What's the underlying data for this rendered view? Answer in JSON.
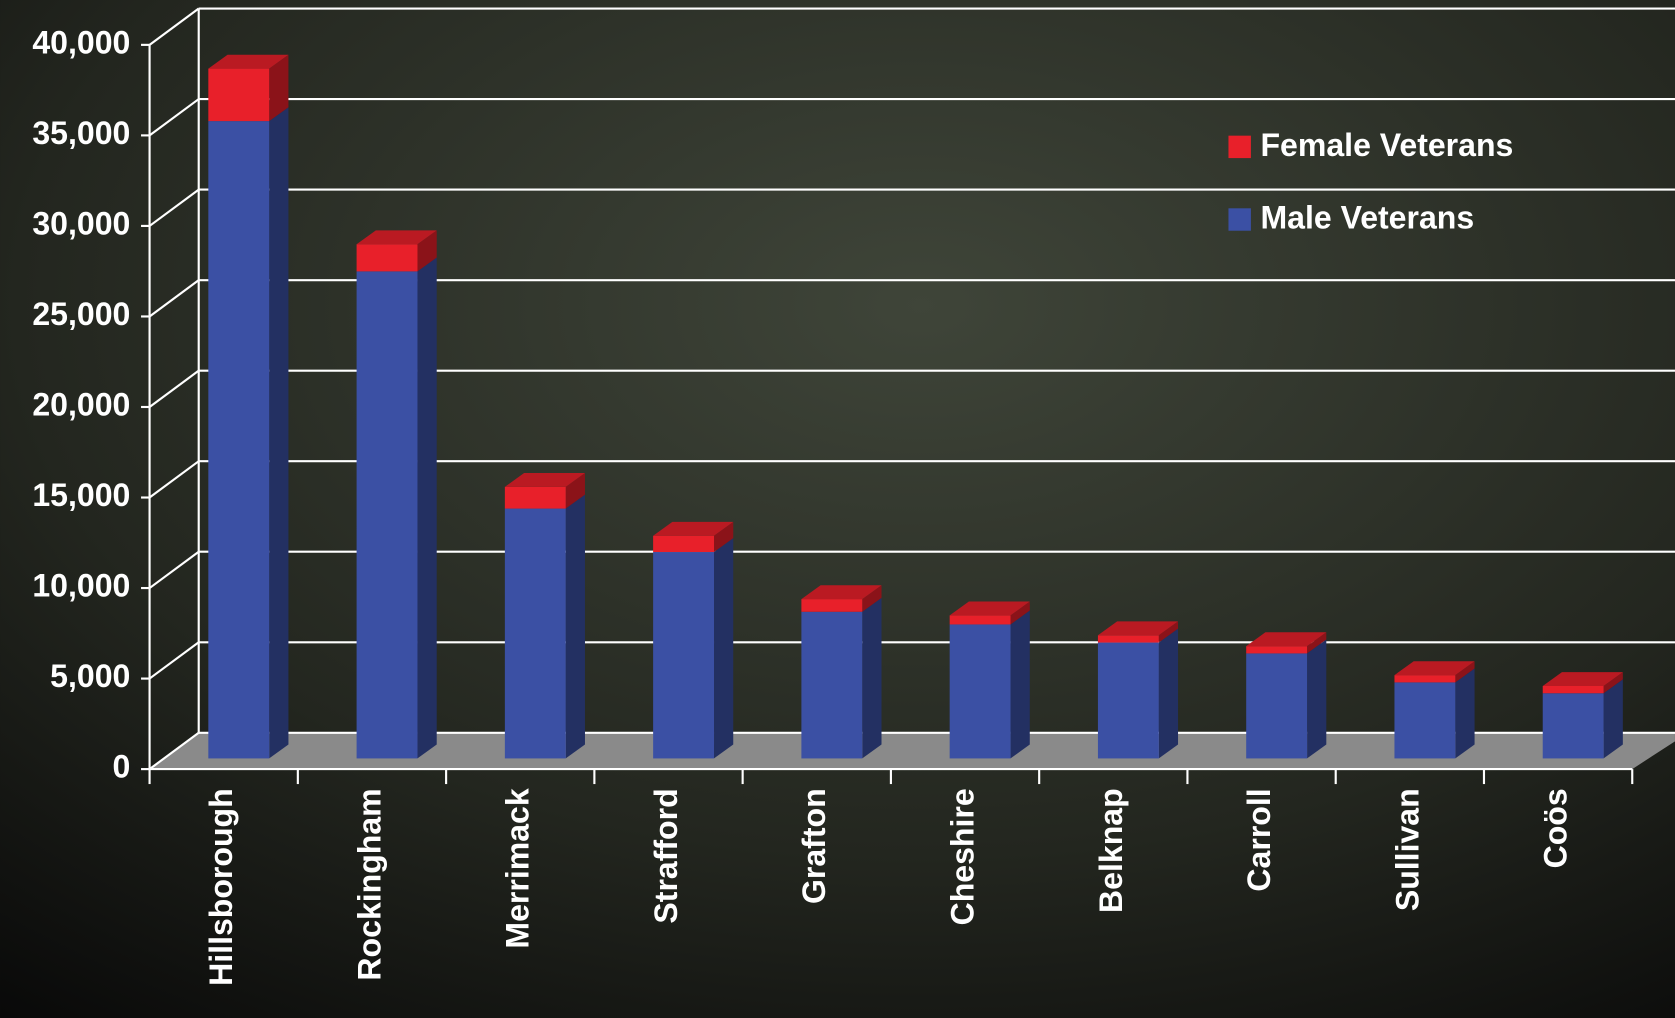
{
  "chart_data": {
    "type": "bar3d_stacked",
    "categories": [
      "Hillsborough",
      "Rockingham",
      "Merrimack",
      "Strafford",
      "Grafton",
      "Cheshire",
      "Belknap",
      "Carroll",
      "Sullivan",
      "Coös"
    ],
    "series": [
      {
        "name": "Male Veterans",
        "color": "#3b50a4",
        "values": [
          35200,
          26900,
          13800,
          11400,
          8100,
          7400,
          6400,
          5800,
          4200,
          3600
        ]
      },
      {
        "name": "Female Veterans",
        "color": "#e8202a",
        "values": [
          2900,
          1500,
          1200,
          900,
          700,
          500,
          400,
          400,
          400,
          400
        ]
      }
    ],
    "ylim": [
      0,
      40000
    ],
    "yticks": [
      0,
      {
        "value": 5000,
        "label": "5,000"
      },
      {
        "value": 10000,
        "label": "10,000"
      },
      {
        "value": 15000,
        "label": "15,000"
      },
      {
        "value": 20000,
        "label": "20,000"
      },
      {
        "value": 25000,
        "label": "25,000"
      },
      {
        "value": 30000,
        "label": "30,000"
      },
      {
        "value": 35000,
        "label": "35,000"
      },
      {
        "value": 40000,
        "label": "40,000"
      }
    ],
    "grid": true
  }
}
